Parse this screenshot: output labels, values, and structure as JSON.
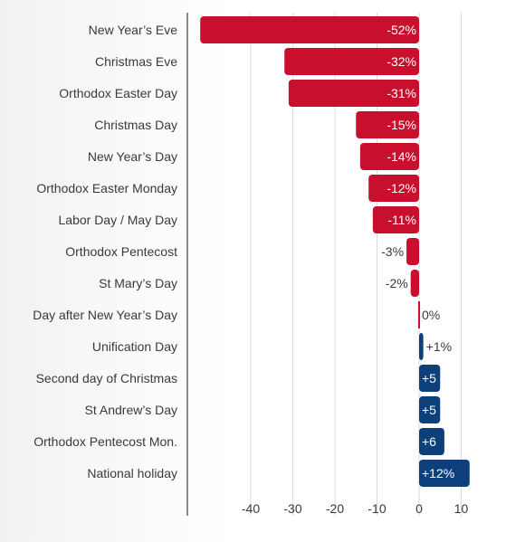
{
  "chart_data": {
    "type": "bar",
    "orientation": "horizontal",
    "title": "",
    "xlabel": "",
    "ylabel": "",
    "categories": [
      "New Year’s Eve",
      "Christmas Eve",
      "Orthodox Easter Day",
      "Christmas Day",
      "New Year’s Day",
      "Orthodox Easter Monday",
      "Labor Day / May Day",
      "Orthodox Pentecost",
      "St Mary’s Day",
      "Day after New Year’s Day",
      "Unification Day",
      "Second day of Christmas",
      "St Andrew’s Day",
      "Orthodox Pentecost Mon.",
      "National holiday"
    ],
    "values": [
      -52,
      -32,
      -31,
      -15,
      -14,
      -12,
      -11,
      -3,
      -2,
      0,
      1,
      5,
      5,
      6,
      12
    ],
    "data_labels": [
      "-52%",
      "-32%",
      "-31%",
      "-15%",
      "-14%",
      "-12%",
      "-11%",
      "-3%",
      "-2%",
      "0%",
      "+1%",
      "+5",
      "+5",
      "+6",
      "+12%"
    ],
    "xlim": [
      -52,
      12
    ],
    "xticks": [
      -40,
      -30,
      -20,
      -10,
      0,
      10
    ],
    "xtick_labels": [
      "-40",
      "-30",
      "-20",
      "-10",
      "0",
      "10"
    ],
    "grid": true,
    "legend": "none",
    "colors": {
      "negative": "#c8102e",
      "positive": "#0d3f7a",
      "zero": "#c8102e",
      "gridline": "#dcdcdc",
      "axis": "#8a8a8a",
      "text": "#3a3a3a"
    }
  }
}
